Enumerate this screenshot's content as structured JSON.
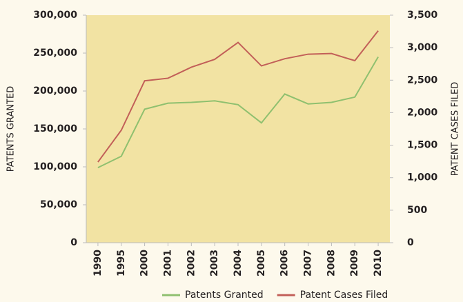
{
  "chart_data": {
    "type": "line",
    "categories": [
      "1990",
      "1995",
      "2000",
      "2001",
      "2002",
      "2003",
      "2004",
      "2005",
      "2006",
      "2007",
      "2008",
      "2009",
      "2010"
    ],
    "y_label": "PATENTS GRANTED",
    "y2_label": "PATENT CASES FILED",
    "series": [
      {
        "name": "Patents Granted",
        "color": "#8fc06f",
        "values": [
          99000,
          114000,
          176000,
          184000,
          185000,
          187000,
          182000,
          158000,
          196000,
          183000,
          185000,
          192000,
          245000
        ]
      },
      {
        "name": "Patent Cases Filed",
        "color": "#c25f58",
        "axis": "y2",
        "values": [
          1240,
          1730,
          2490,
          2530,
          2700,
          2820,
          3080,
          2720,
          2830,
          2900,
          2910,
          2800,
          3260
        ]
      }
    ],
    "ylim": [
      0,
      300000
    ],
    "yticks": [
      0,
      {
        "value": 50000,
        "label": "50,000"
      },
      {
        "value": 100000,
        "label": "100,000"
      },
      {
        "value": 150000,
        "label": "150,000"
      },
      {
        "value": 200000,
        "label": "200,000"
      },
      {
        "value": 250000,
        "label": "250,000"
      },
      {
        "value": 300000,
        "label": "300,000"
      }
    ],
    "y2lim": [
      0,
      3500
    ],
    "y2ticks": [
      0,
      500,
      {
        "value": 1000,
        "label": "1,000"
      },
      {
        "value": 1500,
        "label": "1,500"
      },
      {
        "value": 2000,
        "label": "2,000"
      },
      {
        "value": 2500,
        "label": "2,500"
      },
      {
        "value": 3000,
        "label": "3,000"
      },
      {
        "value": 3500,
        "label": "3,500"
      }
    ],
    "grid": false,
    "legend": "bottom-right"
  }
}
